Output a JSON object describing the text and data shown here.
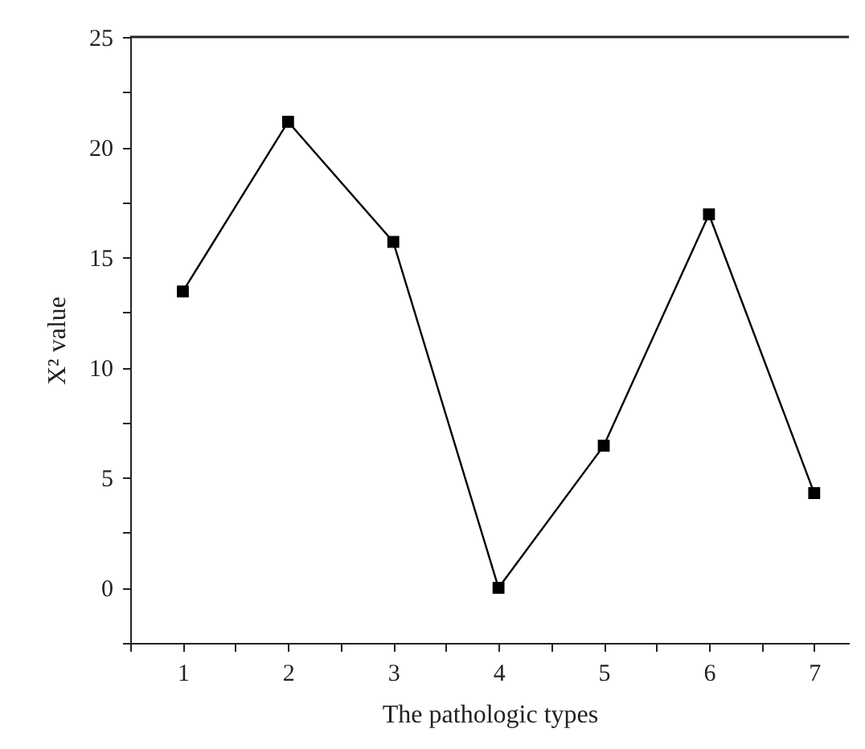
{
  "chart_data": {
    "type": "line",
    "xlabel": "The pathologic types",
    "ylabel": "X² value",
    "x": [
      1,
      2,
      3,
      4,
      5,
      6,
      7
    ],
    "series": [
      {
        "color": "#000000",
        "values": [
          13.45,
          21.15,
          15.7,
          0,
          6.45,
          16.95,
          4.3
        ]
      }
    ],
    "xlim": [
      0.5,
      7.33
    ],
    "xticks": [
      {
        "value": 0.5,
        "label": null
      },
      1,
      {
        "value": 1.5,
        "label": null
      },
      2,
      {
        "value": 2.5,
        "label": null
      },
      3,
      {
        "value": 3.5,
        "label": null
      },
      4,
      {
        "value": 4.5,
        "label": null
      },
      5,
      {
        "value": 5.5,
        "label": null
      },
      6,
      {
        "value": 6.5,
        "label": null
      },
      7
    ],
    "ylim": [
      -2.5,
      25
    ],
    "yticks": [
      {
        "value": -2.5,
        "label": null
      },
      0,
      {
        "value": 2.5,
        "label": null
      },
      5,
      {
        "value": 7.5,
        "label": null
      },
      10,
      {
        "value": 12.5,
        "label": null
      },
      15,
      {
        "value": 17.5,
        "label": null
      },
      20,
      {
        "value": 22.5,
        "label": null
      },
      25
    ],
    "grid": false,
    "marker": "square",
    "line_style": "solid"
  }
}
